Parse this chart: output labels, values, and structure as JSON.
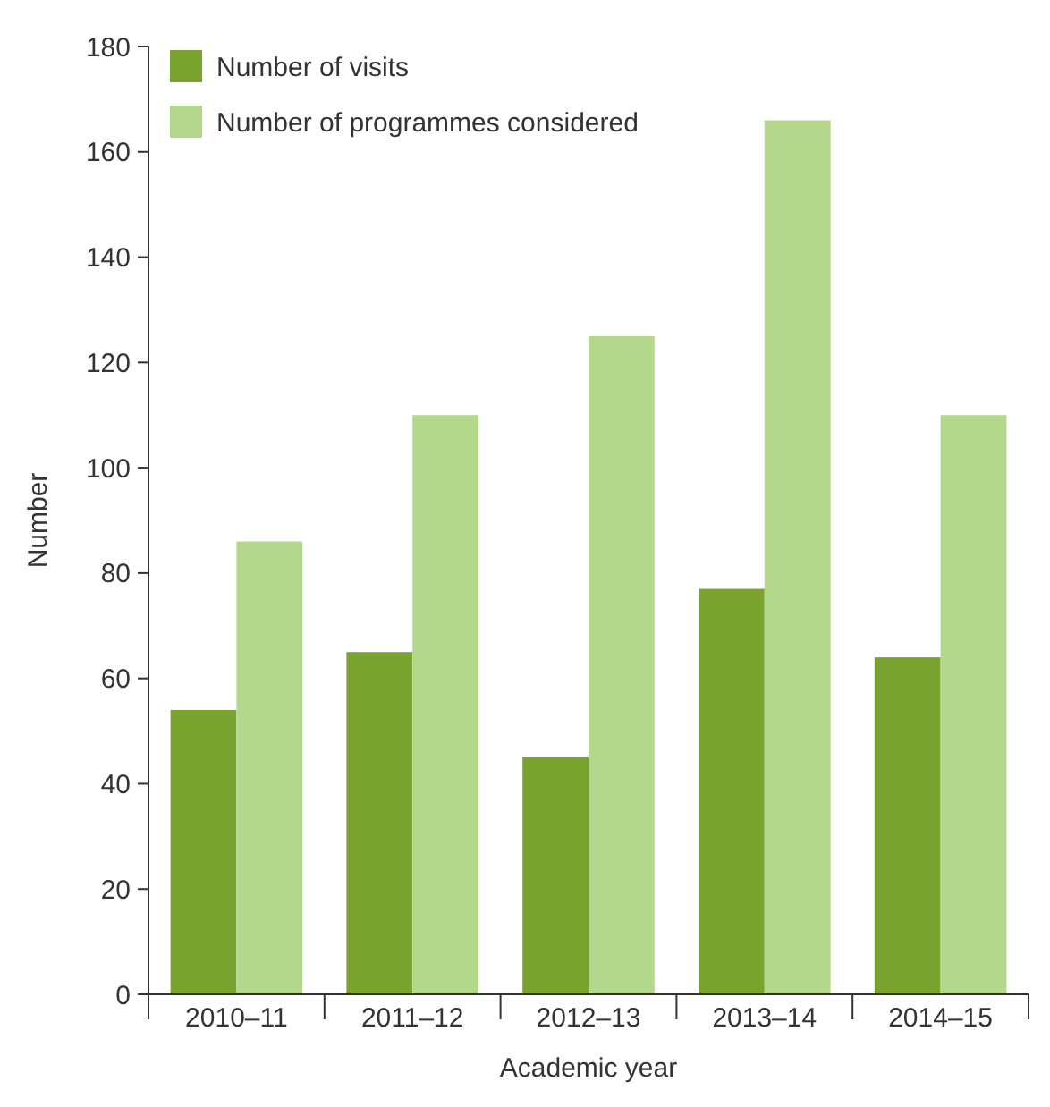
{
  "chart_data": {
    "type": "bar",
    "xlabel": "Academic year",
    "ylabel": "Number",
    "categories": [
      "2010–11",
      "2011–12",
      "2012–13",
      "2013–14",
      "2014–15"
    ],
    "series": [
      {
        "name": "Number of visits",
        "color": "#7aa22f",
        "values": [
          54,
          65,
          45,
          77,
          64
        ]
      },
      {
        "name": "Number of programmes considered",
        "color": "#b3d88c",
        "values": [
          86,
          110,
          125,
          166,
          110
        ]
      }
    ],
    "ylim": [
      0,
      180
    ],
    "yticks": [
      0,
      20,
      40,
      60,
      80,
      100,
      120,
      140,
      160,
      180
    ],
    "grid": false,
    "legend": "top left"
  }
}
